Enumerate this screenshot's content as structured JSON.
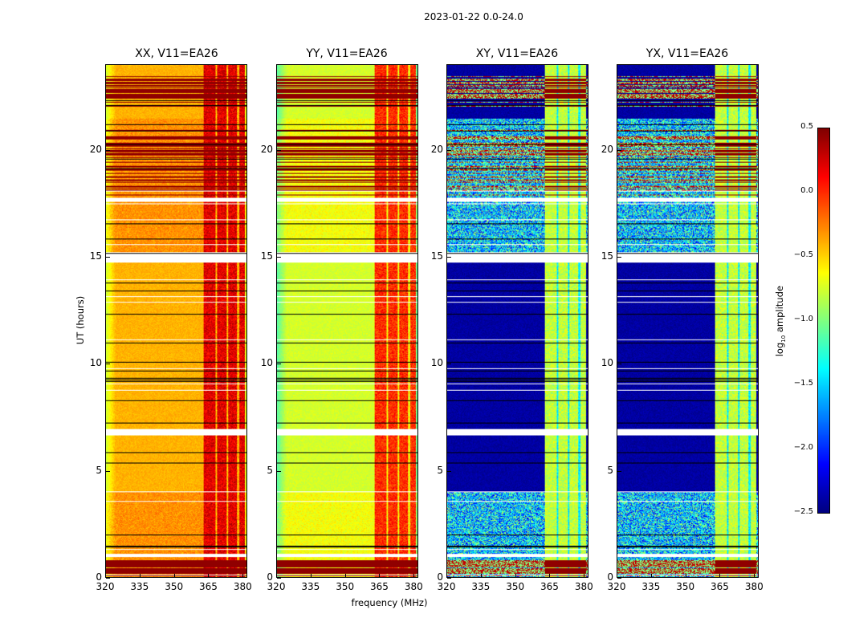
{
  "chart_data": {
    "type": "heatmap",
    "title": "2023-01-22 0.0-24.0",
    "xlabel": "frequency (MHz)",
    "ylabel": "UT (hours)",
    "xlim": [
      320,
      382
    ],
    "ylim": [
      0,
      24
    ],
    "xticks": [
      "320",
      "335",
      "350",
      "365",
      "380"
    ],
    "yticks": [
      "0",
      "5",
      "10",
      "15",
      "20"
    ],
    "colormap": "jet",
    "colorbar": {
      "label": "log10 amplitude",
      "range": [
        -2.5,
        0.5
      ],
      "ticks": [
        "0.5",
        "0.0",
        "−0.5",
        "−1.0",
        "−1.5",
        "−2.0",
        "−2.5"
      ]
    },
    "panels": [
      {
        "name": "XX",
        "title": "XX, V11=EA26",
        "baseline_log10_amplitude": -0.4,
        "rfi_band_mhz": [
          363,
          381
        ],
        "rfi_log10_amplitude": 0.2
      },
      {
        "name": "YY",
        "title": "YY, V11=EA26",
        "baseline_log10_amplitude": -0.75,
        "rfi_band_mhz": [
          363,
          381
        ],
        "rfi_log10_amplitude": 0.0
      },
      {
        "name": "XY",
        "title": "XY, V11=EA26",
        "baseline_log10_amplitude": -2.4,
        "rfi_band_mhz": [
          363,
          381
        ],
        "rfi_log10_amplitude": -0.8
      },
      {
        "name": "YX",
        "title": "YX, V11=EA26",
        "baseline_log10_amplitude": -2.4,
        "rfi_band_mhz": [
          363,
          381
        ],
        "rfi_log10_amplitude": -0.8
      }
    ],
    "flagged_gaps_ut_hours": [
      [
        0.95,
        1.1
      ],
      [
        6.65,
        6.95
      ],
      [
        14.75,
        15.15
      ],
      [
        17.6,
        17.8
      ]
    ]
  }
}
